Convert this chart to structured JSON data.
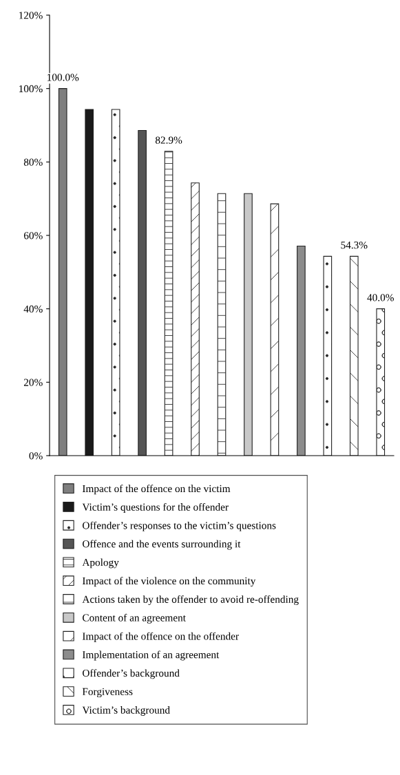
{
  "chart_data": {
    "type": "bar",
    "categories": [
      null,
      null,
      null,
      null,
      null,
      null,
      null,
      null,
      null,
      null,
      null,
      null,
      null
    ],
    "series": [
      {
        "name": "Impact of the offence on the victim",
        "color": "#7f7f7f",
        "values": [
          100.0,
          null,
          null,
          null,
          null,
          null,
          null,
          null,
          null,
          null,
          null,
          null,
          null
        ],
        "value_labels": [
          "100.0%",
          null,
          null,
          null,
          null,
          null,
          null,
          null,
          null,
          null,
          null,
          null,
          null
        ]
      },
      {
        "name": "Victim’s questions for the offender",
        "color": "#1a1a1a",
        "values": [
          null,
          94.3,
          null,
          null,
          null,
          null,
          null,
          null,
          null,
          null,
          null,
          null,
          null
        ]
      },
      {
        "name": "Offender’s responses to the victim’s questions",
        "color": "#222222",
        "values": [
          null,
          null,
          94.3,
          null,
          null,
          null,
          null,
          null,
          null,
          null,
          null,
          null,
          null
        ]
      },
      {
        "name": "Offence and the events surrounding it",
        "color": "#555555",
        "values": [
          null,
          null,
          null,
          88.6,
          null,
          null,
          null,
          null,
          null,
          null,
          null,
          null,
          null
        ]
      },
      {
        "name": "Apology",
        "color": "#222222",
        "values": [
          null,
          null,
          null,
          null,
          82.9,
          null,
          null,
          null,
          null,
          null,
          null,
          null,
          null
        ],
        "value_labels": [
          null,
          null,
          null,
          null,
          "82.9%",
          null,
          null,
          null,
          null,
          null,
          null,
          null,
          null
        ]
      },
      {
        "name": "Impact of the violence on the community",
        "color": "#222222",
        "values": [
          null,
          null,
          null,
          null,
          null,
          74.3,
          null,
          null,
          null,
          null,
          null,
          null,
          null
        ]
      },
      {
        "name": "Actions taken by the offender to avoid re-offending",
        "color": "#222222",
        "values": [
          null,
          null,
          null,
          null,
          null,
          null,
          71.4,
          null,
          null,
          null,
          null,
          null,
          null
        ]
      },
      {
        "name": "Content of an agreement",
        "color": "#c8c8c8",
        "values": [
          null,
          null,
          null,
          null,
          null,
          null,
          null,
          71.4,
          null,
          null,
          null,
          null,
          null
        ]
      },
      {
        "name": "Impact of the offence on the offender",
        "color": "#222222",
        "values": [
          null,
          null,
          null,
          null,
          null,
          null,
          null,
          null,
          68.6,
          null,
          null,
          null,
          null
        ]
      },
      {
        "name": "Implementation of an agreement",
        "color": "#8c8c8c",
        "values": [
          null,
          null,
          null,
          null,
          null,
          null,
          null,
          null,
          null,
          57.1,
          null,
          null,
          null
        ]
      },
      {
        "name": "Offender’s background",
        "color": "#222222",
        "values": [
          null,
          null,
          null,
          null,
          null,
          null,
          null,
          null,
          null,
          null,
          54.3,
          null,
          null
        ]
      },
      {
        "name": "Forgiveness",
        "color": "#222222",
        "values": [
          null,
          null,
          null,
          null,
          null,
          null,
          null,
          null,
          null,
          null,
          null,
          54.3,
          null
        ],
        "value_labels": [
          null,
          null,
          null,
          null,
          null,
          null,
          null,
          null,
          null,
          null,
          null,
          "54.3%",
          null
        ]
      },
      {
        "name": "Victim’s background",
        "color": "#222222",
        "values": [
          null,
          null,
          null,
          null,
          null,
          null,
          null,
          null,
          null,
          null,
          null,
          null,
          40.0
        ],
        "value_labels": [
          null,
          null,
          null,
          null,
          null,
          null,
          null,
          null,
          null,
          null,
          null,
          null,
          "40.0%"
        ]
      }
    ],
    "ylim": [
      0,
      120
    ],
    "yticks": [
      {
        "value": 0,
        "label": "0%"
      },
      {
        "value": 20,
        "label": "20%"
      },
      {
        "value": 40,
        "label": "40%"
      },
      {
        "value": 60,
        "label": "60%"
      },
      {
        "value": 80,
        "label": "80%"
      },
      {
        "value": 100,
        "label": "100%"
      },
      {
        "value": 120,
        "label": "120%"
      }
    ],
    "tick_labels": "y",
    "grid": false,
    "legend": "bottom"
  }
}
